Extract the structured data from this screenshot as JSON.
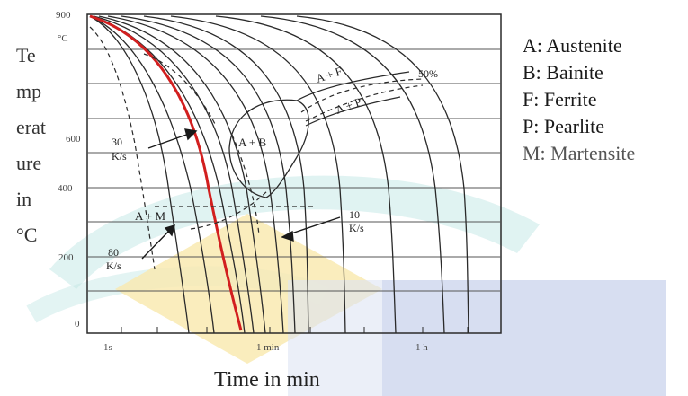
{
  "diagram": {
    "y_axis": {
      "label_lines": [
        "Te",
        "mp",
        "erat",
        "ure",
        "in",
        "°C"
      ],
      "unit_tick": "°C",
      "ticks": [
        "900",
        "600",
        "400",
        "200",
        "0"
      ]
    },
    "x_axis": {
      "label": "Time in min",
      "ticks": [
        "1s",
        "1 min",
        "1 h"
      ]
    },
    "regions": {
      "a_plus_f": "A + F",
      "a_plus_p": "A + P",
      "a_plus_b": "A + B",
      "a_plus_m": "A + M",
      "fifty_pct": "50%"
    },
    "rates": {
      "r30_value": "30",
      "r30_unit": "K/s",
      "r80_value": "80",
      "r80_unit": "K/s",
      "r10_value": "10",
      "r10_unit": "K/s"
    },
    "legend": [
      {
        "key": "A",
        "text": "A: Austenite"
      },
      {
        "key": "B",
        "text": "B: Bainite"
      },
      {
        "key": "F",
        "text": "F: Ferrite"
      },
      {
        "key": "P",
        "text": "P: Pearlite"
      },
      {
        "key": "M",
        "text": "M: Martensite"
      }
    ],
    "colors": {
      "critical_curve": "#d21f1f",
      "lines": "#2a2a2a",
      "watermark_teal": "#8fd3cf",
      "watermark_yellow": "#f7e6a6",
      "watermark_blue": "#c9d3ec"
    }
  }
}
